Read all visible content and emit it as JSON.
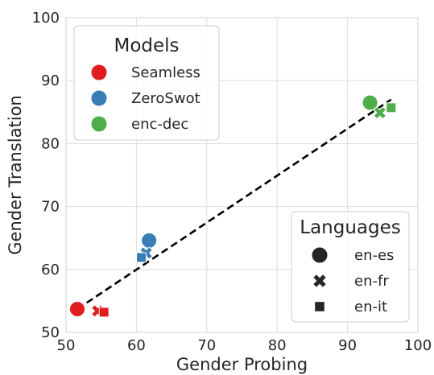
{
  "chart_data": {
    "type": "scatter",
    "xlabel": "Gender Probing",
    "ylabel": "Gender Translation",
    "xlim": [
      50,
      100
    ],
    "ylim": [
      50,
      100
    ],
    "x_ticks": [
      "50",
      "60",
      "70",
      "80",
      "90",
      "100"
    ],
    "y_ticks": [
      "50",
      "60",
      "70",
      "80",
      "90",
      "100"
    ],
    "grid": true,
    "series": [
      {
        "name": "Seamless",
        "color": "#e41a1c",
        "points": [
          {
            "language": "en-es",
            "x": 51.6,
            "y": 53.7
          },
          {
            "language": "en-fr",
            "x": 54.5,
            "y": 53.4
          },
          {
            "language": "en-it",
            "x": 55.4,
            "y": 53.2
          }
        ]
      },
      {
        "name": "ZeroSwot",
        "color": "#377eb8",
        "points": [
          {
            "language": "en-es",
            "x": 61.8,
            "y": 64.6
          },
          {
            "language": "en-fr",
            "x": 61.4,
            "y": 62.6
          },
          {
            "language": "en-it",
            "x": 60.7,
            "y": 61.9
          }
        ]
      },
      {
        "name": "enc-dec",
        "color": "#4daf4a",
        "points": [
          {
            "language": "en-es",
            "x": 93.2,
            "y": 86.5
          },
          {
            "language": "en-fr",
            "x": 94.6,
            "y": 84.9
          },
          {
            "language": "en-it",
            "x": 96.2,
            "y": 85.7
          }
        ]
      }
    ],
    "trendline": {
      "style": "dashed",
      "color": "#000000",
      "x": [
        51.6,
        96.2
      ],
      "y": [
        53.7,
        87.0
      ]
    },
    "legends": [
      {
        "title": "Models",
        "placement": "upper-left",
        "entries": [
          {
            "label": "Seamless",
            "marker": "circle",
            "color": "#e41a1c"
          },
          {
            "label": "ZeroSwot",
            "marker": "circle",
            "color": "#377eb8"
          },
          {
            "label": "enc-dec",
            "marker": "circle",
            "color": "#4daf4a"
          }
        ]
      },
      {
        "title": "Languages",
        "placement": "lower-right",
        "entries": [
          {
            "label": "en-es",
            "marker": "circle",
            "color": "#262626"
          },
          {
            "label": "en-fr",
            "marker": "x",
            "color": "#262626"
          },
          {
            "label": "en-it",
            "marker": "square",
            "color": "#262626"
          }
        ]
      }
    ]
  }
}
